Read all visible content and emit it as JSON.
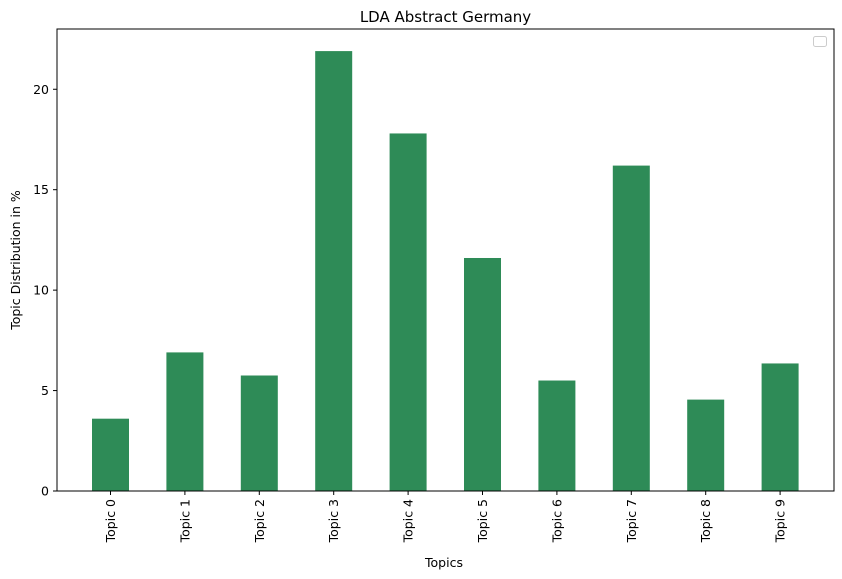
{
  "chart_data": {
    "type": "bar",
    "title": "LDA Abstract Germany",
    "xlabel": "Topics",
    "ylabel": "Topic Distribution in %",
    "categories": [
      "Topic 0",
      "Topic 1",
      "Topic 2",
      "Topic 3",
      "Topic 4",
      "Topic 5",
      "Topic 6",
      "Topic 7",
      "Topic 8",
      "Topic 9"
    ],
    "values": [
      3.6,
      6.9,
      5.75,
      21.9,
      17.8,
      11.6,
      5.5,
      16.2,
      4.55,
      6.35
    ],
    "ylim": [
      0,
      23
    ],
    "yticks": [
      "0",
      "5",
      "10",
      "15",
      "20"
    ],
    "grid": false,
    "legend": "top-right, empty",
    "colors": {
      "bar": "#2e8b57",
      "axis": "#000000",
      "background": "#ffffff"
    }
  }
}
